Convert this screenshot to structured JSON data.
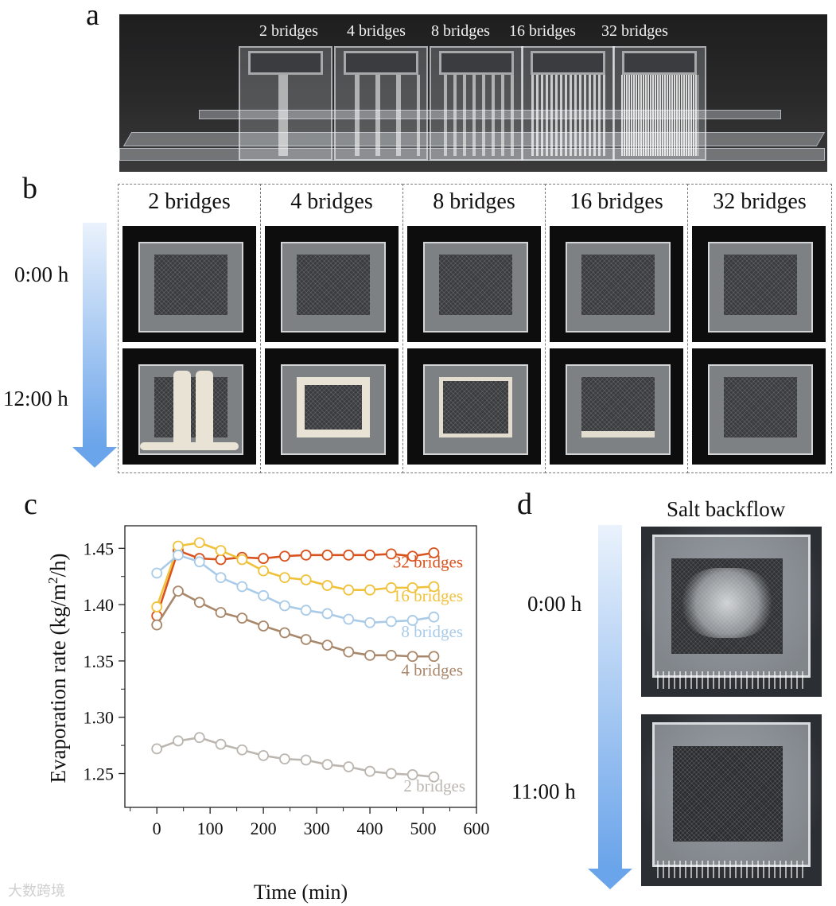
{
  "panels": {
    "a": {
      "letter": "a",
      "labels": [
        "2 bridges",
        "4 bridges",
        "8 bridges",
        "16 bridges",
        "32 bridges"
      ]
    },
    "b": {
      "letter": "b",
      "columns": [
        "2 bridges",
        "4 bridges",
        "8 bridges",
        "16 bridges",
        "32 bridges"
      ],
      "rows": [
        "0:00 h",
        "12:00 h"
      ]
    },
    "c": {
      "letter": "c"
    },
    "d": {
      "letter": "d",
      "title": "Salt backflow",
      "rows": [
        "0:00 h",
        "11:00 h"
      ]
    }
  },
  "colors": {
    "s32": "#d9531e",
    "s16": "#f0c23c",
    "s8": "#a9cbe8",
    "s4": "#a8876a",
    "s2": "#bcb6b0",
    "arrow": "#6aa4ea"
  },
  "chart_data": {
    "type": "line",
    "xlabel": "Time (min)",
    "ylabel_parts": [
      "Evaporation rate (kg/m",
      "2",
      "/h)"
    ],
    "xlim": [
      -60,
      600
    ],
    "ylim": [
      1.22,
      1.47
    ],
    "xticks": [
      0,
      100,
      200,
      300,
      400,
      500,
      600
    ],
    "yticks": [
      1.25,
      1.3,
      1.35,
      1.4,
      1.45
    ],
    "ytick_labels": [
      "1.25",
      "1.30",
      "1.35",
      "1.40",
      "1.45"
    ],
    "x": [
      0,
      40,
      80,
      120,
      160,
      200,
      240,
      280,
      320,
      360,
      400,
      440,
      480,
      520
    ],
    "series": [
      {
        "name": "32 bridges",
        "color": "#d9531e",
        "values": [
          1.39,
          1.448,
          1.441,
          1.44,
          1.442,
          1.441,
          1.443,
          1.444,
          1.444,
          1.444,
          1.444,
          1.445,
          1.443,
          1.446
        ]
      },
      {
        "name": "16 bridges",
        "color": "#f0c23c",
        "values": [
          1.398,
          1.452,
          1.455,
          1.448,
          1.44,
          1.43,
          1.424,
          1.422,
          1.417,
          1.413,
          1.413,
          1.415,
          1.415,
          1.416
        ]
      },
      {
        "name": "8 bridges",
        "color": "#a9cbe8",
        "values": [
          1.428,
          1.444,
          1.438,
          1.424,
          1.416,
          1.408,
          1.399,
          1.395,
          1.392,
          1.387,
          1.384,
          1.385,
          1.386,
          1.389
        ]
      },
      {
        "name": "4 bridges",
        "color": "#a8876a",
        "values": [
          1.382,
          1.412,
          1.402,
          1.393,
          1.388,
          1.381,
          1.375,
          1.369,
          1.364,
          1.358,
          1.355,
          1.355,
          1.354,
          1.354
        ]
      },
      {
        "name": "2 bridges",
        "color": "#bcb6b0",
        "values": [
          1.272,
          1.279,
          1.282,
          1.276,
          1.271,
          1.266,
          1.263,
          1.262,
          1.258,
          1.256,
          1.252,
          1.25,
          1.249,
          1.247
        ]
      }
    ]
  },
  "watermark": "大数跨境"
}
